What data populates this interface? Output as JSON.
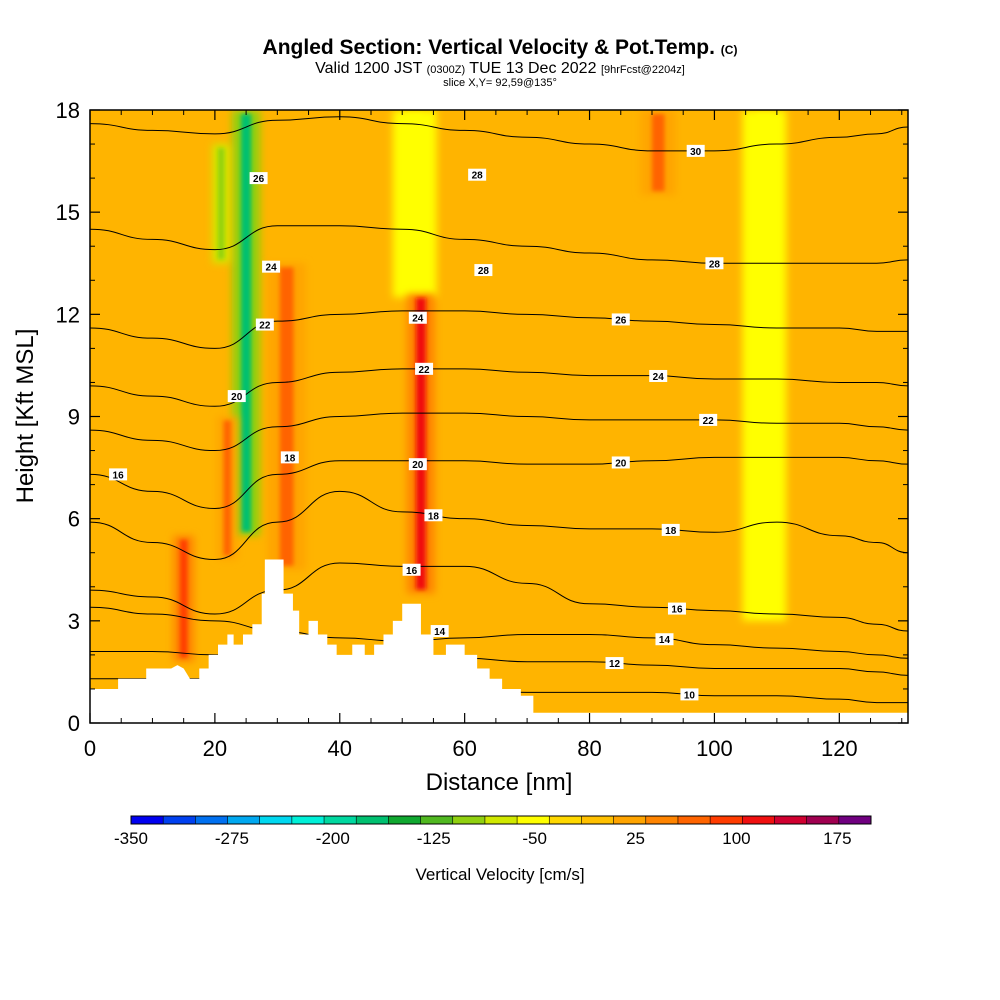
{
  "title": {
    "main": "Angled Section: Vertical Velocity & Pot.Temp.",
    "main_mark": "(C)",
    "valid_a": "Valid 1200 JST",
    "valid_b": "(0300Z)",
    "valid_c": "TUE 13 Dec 2022",
    "valid_d": "[9hrFcst@2204z]",
    "slice": "slice X,Y= 92,59@135°"
  },
  "chart_data": {
    "type": "heatmap",
    "xlabel": "Distance [nm]",
    "ylabel": "Height [Kft MSL]",
    "xlim": [
      0,
      131
    ],
    "ylim": [
      0,
      18
    ],
    "x_ticks": [
      0,
      20,
      40,
      60,
      80,
      100,
      120
    ],
    "y_ticks": [
      0,
      3,
      6,
      9,
      12,
      15,
      18
    ],
    "grid": false,
    "colorbar": {
      "title": "Vertical Velocity [cm/s]",
      "tick_values": [
        -350,
        -275,
        -200,
        -125,
        -50,
        25,
        100,
        175
      ],
      "bins": [
        -350,
        -325,
        -300,
        -275,
        -250,
        -225,
        -200,
        -175,
        -150,
        -125,
        -100,
        -75,
        -50,
        -25,
        0,
        25,
        50,
        75,
        100,
        125,
        150,
        175,
        200
      ],
      "colors": [
        "#0000f0",
        "#0040f0",
        "#0070f0",
        "#00a8f0",
        "#00d8f0",
        "#00f0d8",
        "#00d8a0",
        "#00c070",
        "#10a830",
        "#50b820",
        "#90d010",
        "#d0e800",
        "#ffff00",
        "#ffd800",
        "#ffc000",
        "#ffa400",
        "#ff8400",
        "#ff6400",
        "#ff3c00",
        "#f01010",
        "#d00030",
        "#a00050",
        "#700080"
      ]
    },
    "terrain": [
      [
        0,
        1.0
      ],
      [
        4.5,
        1.0
      ],
      [
        4.5,
        1.3
      ],
      [
        9,
        1.3
      ],
      [
        9,
        1.6
      ],
      [
        13,
        1.6
      ],
      [
        14,
        1.7
      ],
      [
        15,
        1.6
      ],
      [
        16,
        1.3
      ],
      [
        17.5,
        1.3
      ],
      [
        17.5,
        1.6
      ],
      [
        19,
        1.6
      ],
      [
        19,
        2.0
      ],
      [
        20.5,
        2.0
      ],
      [
        20.5,
        2.3
      ],
      [
        22,
        2.3
      ],
      [
        22,
        2.6
      ],
      [
        23,
        2.6
      ],
      [
        23,
        2.3
      ],
      [
        24.5,
        2.3
      ],
      [
        24.5,
        2.6
      ],
      [
        26,
        2.6
      ],
      [
        26,
        2.9
      ],
      [
        27.5,
        2.9
      ],
      [
        27.5,
        3.8
      ],
      [
        28,
        3.8
      ],
      [
        28,
        4.8
      ],
      [
        31,
        4.8
      ],
      [
        31,
        3.8
      ],
      [
        32.5,
        3.8
      ],
      [
        32.5,
        3.3
      ],
      [
        33.5,
        3.3
      ],
      [
        33.5,
        2.6
      ],
      [
        35,
        2.6
      ],
      [
        35,
        3.0
      ],
      [
        36.5,
        3.0
      ],
      [
        36.5,
        2.6
      ],
      [
        38,
        2.6
      ],
      [
        38,
        2.3
      ],
      [
        39.5,
        2.3
      ],
      [
        39.5,
        2.0
      ],
      [
        42,
        2.0
      ],
      [
        42,
        2.3
      ],
      [
        44,
        2.3
      ],
      [
        44,
        2.0
      ],
      [
        45.5,
        2.0
      ],
      [
        45.5,
        2.3
      ],
      [
        47,
        2.3
      ],
      [
        47,
        2.6
      ],
      [
        48.5,
        2.6
      ],
      [
        48.5,
        3.0
      ],
      [
        50,
        3.0
      ],
      [
        50,
        3.5
      ],
      [
        53,
        3.5
      ],
      [
        53,
        2.6
      ],
      [
        55,
        2.6
      ],
      [
        55,
        2.0
      ],
      [
        57,
        2.0
      ],
      [
        57,
        2.3
      ],
      [
        60,
        2.3
      ],
      [
        60,
        2.0
      ],
      [
        62,
        2.0
      ],
      [
        62,
        1.6
      ],
      [
        64,
        1.6
      ],
      [
        64,
        1.3
      ],
      [
        66,
        1.3
      ],
      [
        66,
        1.0
      ],
      [
        69,
        1.0
      ],
      [
        69,
        0.8
      ],
      [
        71,
        0.8
      ],
      [
        71,
        0.3
      ],
      [
        131,
        0.3
      ]
    ],
    "updraft_bands": [
      {
        "x": 15,
        "width": 1.2,
        "y_range": [
          1.8,
          5.5
        ],
        "value": 100
      },
      {
        "x": 22,
        "width": 1.2,
        "y_range": [
          4.8,
          9.0
        ],
        "value": 75
      },
      {
        "x": 31.5,
        "width": 2.2,
        "y_range": [
          4.5,
          13.5
        ],
        "value": 75
      },
      {
        "x": 53,
        "width": 1.6,
        "y_range": [
          3.8,
          12.6
        ],
        "value": 125
      },
      {
        "x": 91,
        "width": 2.0,
        "y_range": [
          15.5,
          18
        ],
        "value": 75
      }
    ],
    "downdraft_bands": [
      {
        "x": 25,
        "width": 1.6,
        "y_range": [
          5.5,
          18
        ],
        "value": -175
      },
      {
        "x": 21,
        "width": 1.0,
        "y_range": [
          13.5,
          17
        ],
        "value": -100
      },
      {
        "x": 52,
        "width": 2.5,
        "y_range": [
          12.5,
          18
        ],
        "value": -50
      },
      {
        "x": 108,
        "width": 2.5,
        "y_range": [
          3,
          18
        ],
        "value": -50
      }
    ],
    "theta_contours": [
      {
        "label": "10",
        "label_x": 96,
        "y": [
          1.3,
          1.3,
          1.3,
          1.3,
          1.2,
          1.2,
          1.0,
          0.9,
          0.9,
          0.9,
          0.8,
          0.8,
          0.7,
          0.6,
          0.6
        ]
      },
      {
        "label": "12",
        "label_x": 84,
        "y": [
          2.1,
          2.1,
          2.0,
          2.0,
          1.9,
          1.9,
          1.9,
          1.8,
          1.8,
          1.7,
          1.6,
          1.6,
          1.6,
          1.5,
          1.4
        ]
      },
      {
        "label": "14",
        "label_x": 92,
        "y": [
          3.4,
          3.2,
          3.0,
          2.7,
          2.5,
          2.4,
          2.5,
          2.6,
          2.6,
          2.5,
          2.3,
          2.2,
          2.1,
          2.0,
          1.9
        ]
      },
      {
        "label": "16",
        "label_x": 94,
        "y": [
          3.9,
          3.7,
          3.2,
          3.9,
          4.7,
          4.6,
          4.6,
          4.1,
          3.5,
          3.4,
          3.3,
          3.2,
          3.1,
          2.9,
          2.7
        ]
      },
      {
        "label": "18",
        "label_x": 93,
        "y": [
          5.9,
          5.3,
          4.8,
          5.9,
          6.8,
          6.2,
          6.0,
          5.8,
          5.7,
          5.7,
          5.6,
          5.9,
          5.5,
          5.3,
          5.0
        ]
      },
      {
        "label": "20",
        "label_x": 85,
        "y": [
          7.3,
          6.8,
          6.3,
          7.3,
          7.7,
          7.7,
          7.7,
          7.6,
          7.6,
          7.7,
          7.8,
          7.8,
          7.8,
          7.7,
          7.6
        ]
      },
      {
        "label": "22",
        "label_x": 99,
        "y": [
          8.6,
          8.3,
          8.0,
          8.7,
          9.0,
          9.1,
          9.1,
          9.0,
          8.9,
          8.9,
          8.9,
          8.8,
          8.8,
          8.7,
          8.6
        ]
      },
      {
        "label": "24",
        "label_x": 91,
        "y": [
          9.9,
          9.6,
          9.3,
          10.0,
          10.3,
          10.4,
          10.4,
          10.3,
          10.2,
          10.2,
          10.1,
          10.1,
          10.0,
          10.0,
          9.9
        ]
      },
      {
        "label": "26",
        "label_x": 85,
        "y": [
          11.6,
          11.3,
          11.0,
          11.8,
          12.0,
          12.1,
          12.1,
          12.0,
          11.9,
          11.8,
          11.7,
          11.6,
          11.6,
          11.5,
          11.5
        ]
      },
      {
        "label": "28",
        "label_x": 100,
        "y": [
          14.5,
          14.2,
          13.9,
          14.6,
          14.6,
          14.5,
          14.2,
          14.0,
          13.8,
          13.6,
          13.5,
          13.5,
          13.5,
          13.5,
          13.6
        ]
      },
      {
        "label": "30",
        "label_x": 97,
        "y": [
          17.6,
          17.4,
          17.3,
          17.7,
          17.8,
          17.6,
          17.4,
          17.2,
          17.0,
          16.8,
          16.8,
          17.0,
          17.2,
          17.3,
          17.5
        ]
      }
    ],
    "contour_x": [
      0,
      10,
      20,
      30,
      40,
      50,
      60,
      70,
      80,
      90,
      100,
      110,
      120,
      126,
      131
    ],
    "stacked_contour_labels": [
      {
        "text": "26",
        "x": 27,
        "y": 16.0
      },
      {
        "text": "24",
        "x": 29,
        "y": 13.4
      },
      {
        "text": "22",
        "x": 28,
        "y": 11.7
      },
      {
        "text": "20",
        "x": 23.5,
        "y": 9.6
      },
      {
        "text": "16",
        "x": 4.5,
        "y": 7.3
      },
      {
        "text": "18",
        "x": 32,
        "y": 7.8
      },
      {
        "text": "24",
        "x": 52.5,
        "y": 11.9
      },
      {
        "text": "22",
        "x": 53.5,
        "y": 10.4
      },
      {
        "text": "20",
        "x": 52.5,
        "y": 7.6
      },
      {
        "text": "18",
        "x": 55,
        "y": 6.1
      },
      {
        "text": "16",
        "x": 51.5,
        "y": 4.5
      },
      {
        "text": "14",
        "x": 56,
        "y": 2.7
      },
      {
        "text": "28",
        "x": 62,
        "y": 16.1
      },
      {
        "text": "28",
        "x": 63,
        "y": 13.3
      }
    ]
  }
}
